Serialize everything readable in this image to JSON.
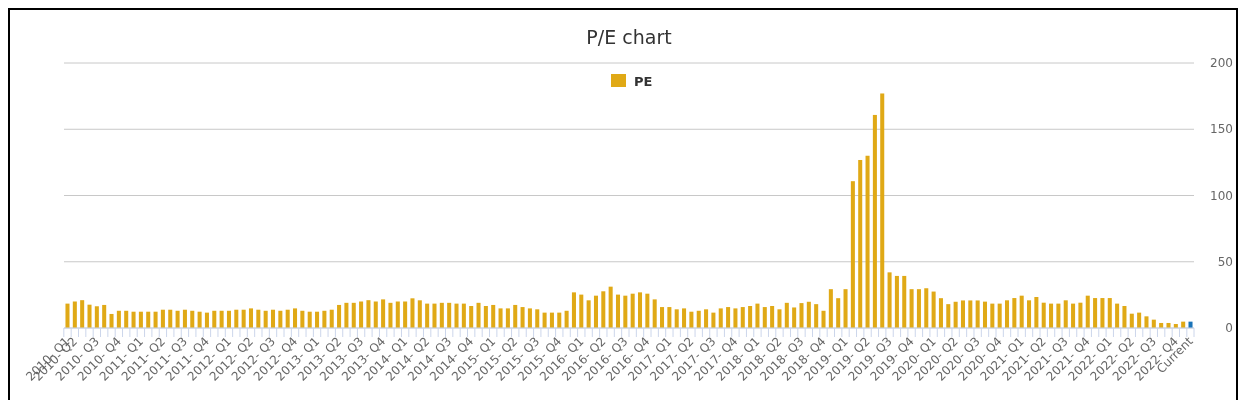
{
  "chart_data": {
    "type": "bar",
    "title": "P/E chart",
    "categories": [
      "2010- Q1",
      "2010- Q2",
      null,
      null,
      "2010- Q3",
      null,
      null,
      "2010- Q4",
      null,
      null,
      "2011- Q1",
      null,
      null,
      "2011- Q2",
      null,
      null,
      "2011- Q3",
      null,
      null,
      "2011- Q4",
      null,
      null,
      "2012- Q1",
      null,
      null,
      "2012- Q2",
      null,
      null,
      "2012- Q3",
      null,
      null,
      "2012- Q4",
      null,
      null,
      "2013- Q1",
      null,
      null,
      "2013- Q2",
      null,
      null,
      "2013- Q3",
      null,
      null,
      "2013- Q4",
      null,
      null,
      "2014- Q1",
      null,
      null,
      "2014- Q2",
      null,
      null,
      "2014- Q3",
      null,
      null,
      "2014- Q4",
      null,
      null,
      "2015- Q1",
      null,
      null,
      "2015- Q2",
      null,
      null,
      "2015- Q3",
      null,
      null,
      "2015- Q4",
      null,
      null,
      "2016- Q1",
      null,
      null,
      "2016- Q2",
      null,
      null,
      "2016- Q3",
      null,
      null,
      "2016- Q4",
      null,
      null,
      "2017- Q1",
      null,
      null,
      "2017- Q2",
      null,
      null,
      "2017- Q3",
      null,
      null,
      "2017- Q4",
      null,
      null,
      "2018- Q1",
      null,
      null,
      "2018- Q2",
      null,
      null,
      "2018- Q3",
      null,
      null,
      "2018- Q4",
      null,
      null,
      "2019- Q1",
      null,
      null,
      "2019- Q2",
      null,
      null,
      "2019- Q3",
      null,
      null,
      "2019- Q4",
      null,
      null,
      "2020- Q1",
      null,
      null,
      "2020- Q2",
      null,
      null,
      "2020- Q3",
      null,
      null,
      "2020- Q4",
      null,
      null,
      "2021- Q1",
      null,
      null,
      "2021- Q2",
      null,
      null,
      "2021- Q3",
      null,
      null,
      "2021- Q4",
      null,
      null,
      "2022- Q1",
      null,
      null,
      "2022- Q2",
      null,
      null,
      "2022- Q3",
      null,
      null,
      "2022- Q4",
      null,
      "Current"
    ],
    "series": [
      {
        "name": "PE",
        "color": "#e0a916",
        "values": [
          18.4,
          20,
          21,
          17.6,
          16.4,
          17.4,
          10.6,
          13,
          13,
          12.3,
          12.3,
          12.3,
          12.3,
          13.8,
          13.8,
          13,
          13.8,
          13,
          12.3,
          11.6,
          13,
          13,
          13,
          13.8,
          13.8,
          14.8,
          13.8,
          13,
          13.8,
          13,
          13.8,
          14.8,
          13,
          12.3,
          12.3,
          13,
          13.8,
          17.4,
          19,
          19,
          20,
          21,
          20,
          21.6,
          19,
          20,
          20,
          22.4,
          20.9,
          18.4,
          18.4,
          19,
          19,
          18.4,
          18.4,
          16.6,
          19,
          16.6,
          17.4,
          14.8,
          14.8,
          17.4,
          15.8,
          14.8,
          14.1,
          11.6,
          11.6,
          11.6,
          13,
          26.9,
          25.2,
          20.9,
          24.4,
          27.7,
          31.2,
          25.2,
          24.4,
          25.9,
          26.9,
          25.9,
          21.6,
          15.8,
          15.8,
          14.1,
          14.8,
          12.3,
          13,
          14.1,
          11.6,
          14.8,
          15.8,
          14.8,
          15.8,
          16.6,
          18.4,
          15.8,
          16.6,
          14.1,
          19,
          15.5,
          18.8,
          19.8,
          18,
          13,
          29.3,
          22.5,
          29.3,
          110.8,
          126.8,
          130,
          160.8,
          177,
          42,
          39.3,
          39.3,
          29.3,
          29.3,
          30,
          27.5,
          22.5,
          18,
          19.8,
          20.8,
          20.8,
          20.8,
          19.9,
          18.4,
          18.4,
          20.9,
          22.6,
          24.4,
          20.9,
          23.4,
          19.1,
          18.4,
          18.4,
          20.9,
          18.4,
          19.1,
          24.4,
          22.6,
          22.6,
          22.6,
          18.4,
          16.6,
          10.8,
          11.6,
          8.8,
          6.3,
          3.8,
          3.8,
          3,
          4.8,
          4.8
        ],
        "colors": [
          "#e0a916",
          "#e0a916",
          "#e0a916",
          "#e0a916",
          "#e0a916",
          "#e0a916",
          "#e0a916",
          "#e0a916",
          "#e0a916",
          "#e0a916",
          "#e0a916",
          "#e0a916",
          "#e0a916",
          "#e0a916",
          "#e0a916",
          "#e0a916",
          "#e0a916",
          "#e0a916",
          "#e0a916",
          "#e0a916",
          "#e0a916",
          "#e0a916",
          "#e0a916",
          "#e0a916",
          "#e0a916",
          "#e0a916",
          "#e0a916",
          "#e0a916",
          "#e0a916",
          "#e0a916",
          "#e0a916",
          "#e0a916",
          "#e0a916",
          "#e0a916",
          "#e0a916",
          "#e0a916",
          "#e0a916",
          "#e0a916",
          "#e0a916",
          "#e0a916",
          "#e0a916",
          "#e0a916",
          "#e0a916",
          "#e0a916",
          "#e0a916",
          "#e0a916",
          "#e0a916",
          "#e0a916",
          "#e0a916",
          "#e0a916",
          "#e0a916",
          "#e0a916",
          "#e0a916",
          "#e0a916",
          "#e0a916",
          "#e0a916",
          "#e0a916",
          "#e0a916",
          "#e0a916",
          "#e0a916",
          "#e0a916",
          "#e0a916",
          "#e0a916",
          "#e0a916",
          "#e0a916",
          "#e0a916",
          "#e0a916",
          "#e0a916",
          "#e0a916",
          "#e0a916",
          "#e0a916",
          "#e0a916",
          "#e0a916",
          "#e0a916",
          "#e0a916",
          "#e0a916",
          "#e0a916",
          "#e0a916",
          "#e0a916",
          "#e0a916",
          "#e0a916",
          "#e0a916",
          "#e0a916",
          "#e0a916",
          "#e0a916",
          "#e0a916",
          "#e0a916",
          "#e0a916",
          "#e0a916",
          "#e0a916",
          "#e0a916",
          "#e0a916",
          "#e0a916",
          "#e0a916",
          "#e0a916",
          "#e0a916",
          "#e0a916",
          "#e0a916",
          "#e0a916",
          "#e0a916",
          "#e0a916",
          "#e0a916",
          "#e0a916",
          "#e0a916",
          "#e0a916",
          "#e0a916",
          "#e0a916",
          "#e0a916",
          "#e0a916",
          "#e0a916",
          "#e0a916",
          "#e0a916",
          "#e0a916",
          "#e0a916",
          "#e0a916",
          "#e0a916",
          "#e0a916",
          "#e0a916",
          "#e0a916",
          "#e0a916",
          "#e0a916",
          "#e0a916",
          "#e0a916",
          "#e0a916",
          "#e0a916",
          "#e0a916",
          "#e0a916",
          "#e0a916",
          "#e0a916",
          "#e0a916",
          "#e0a916",
          "#e0a916",
          "#e0a916",
          "#e0a916",
          "#e0a916",
          "#e0a916",
          "#e0a916",
          "#e0a916",
          "#e0a916",
          "#e0a916",
          "#e0a916",
          "#e0a916",
          "#e0a916",
          "#e0a916",
          "#e0a916",
          "#e0a916",
          "#e0a916",
          "#e0a916",
          "#e0a916",
          "#e0a916",
          "#e0a916",
          "#e0a916",
          "#e0a916",
          "#1a73b8"
        ]
      }
    ],
    "ylim": [
      0,
      200
    ],
    "yticks": [
      0,
      50,
      100,
      150,
      200
    ],
    "grid": "y",
    "legend": "top"
  }
}
